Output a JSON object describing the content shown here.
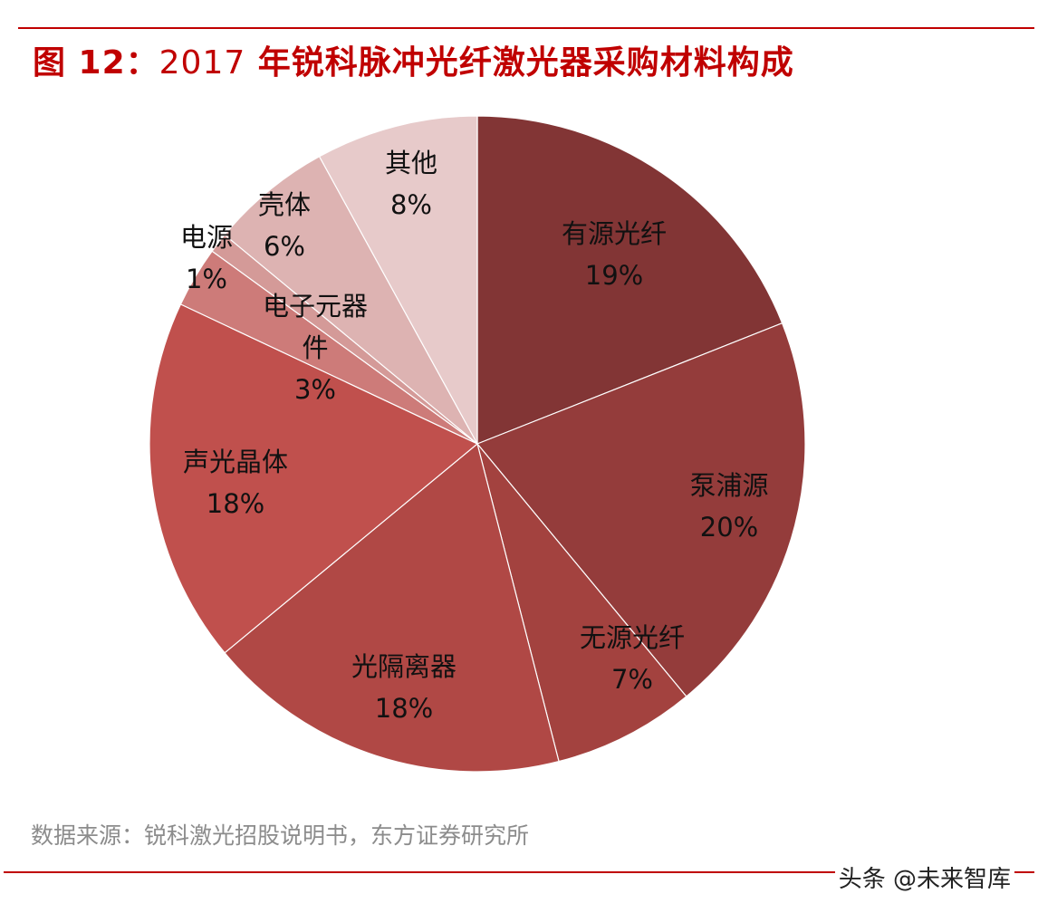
{
  "figure": {
    "title_prefix": "图 12：",
    "title_year": "2017",
    "title_rest": " 年锐科脉冲光纤激光器采购材料构成",
    "source": "数据来源：锐科激光招股说明书，东方证券研究所",
    "watermark": "头条 @未来智库"
  },
  "colors": {
    "accent": "#c00000"
  },
  "chart_data": {
    "type": "pie",
    "title": "2017 年锐科脉冲光纤激光器采购材料构成",
    "start_angle_deg": 0,
    "direction": "clockwise",
    "slices": [
      {
        "label": "有源光纤",
        "value": 19,
        "display": "19%",
        "color": "#823535"
      },
      {
        "label": "泵浦源",
        "value": 20,
        "display": "20%",
        "color": "#943c3b"
      },
      {
        "label": "无源光纤",
        "value": 7,
        "display": "7%",
        "color": "#a3423f"
      },
      {
        "label": "光隔离器",
        "value": 18,
        "display": "18%",
        "color": "#b04845"
      },
      {
        "label": "声光晶体",
        "value": 18,
        "display": "18%",
        "color": "#c0504d"
      },
      {
        "label": "电子元器件",
        "value": 3,
        "display": "3%",
        "color": "#cd7b79",
        "label_lines": [
          "电子元器",
          "件"
        ]
      },
      {
        "label": "电源",
        "value": 1,
        "display": "1%",
        "color": "#d49a98"
      },
      {
        "label": "壳体",
        "value": 6,
        "display": "6%",
        "color": "#ddb3b2"
      },
      {
        "label": "其他",
        "value": 8,
        "display": "8%",
        "color": "#e7caca"
      }
    ]
  }
}
